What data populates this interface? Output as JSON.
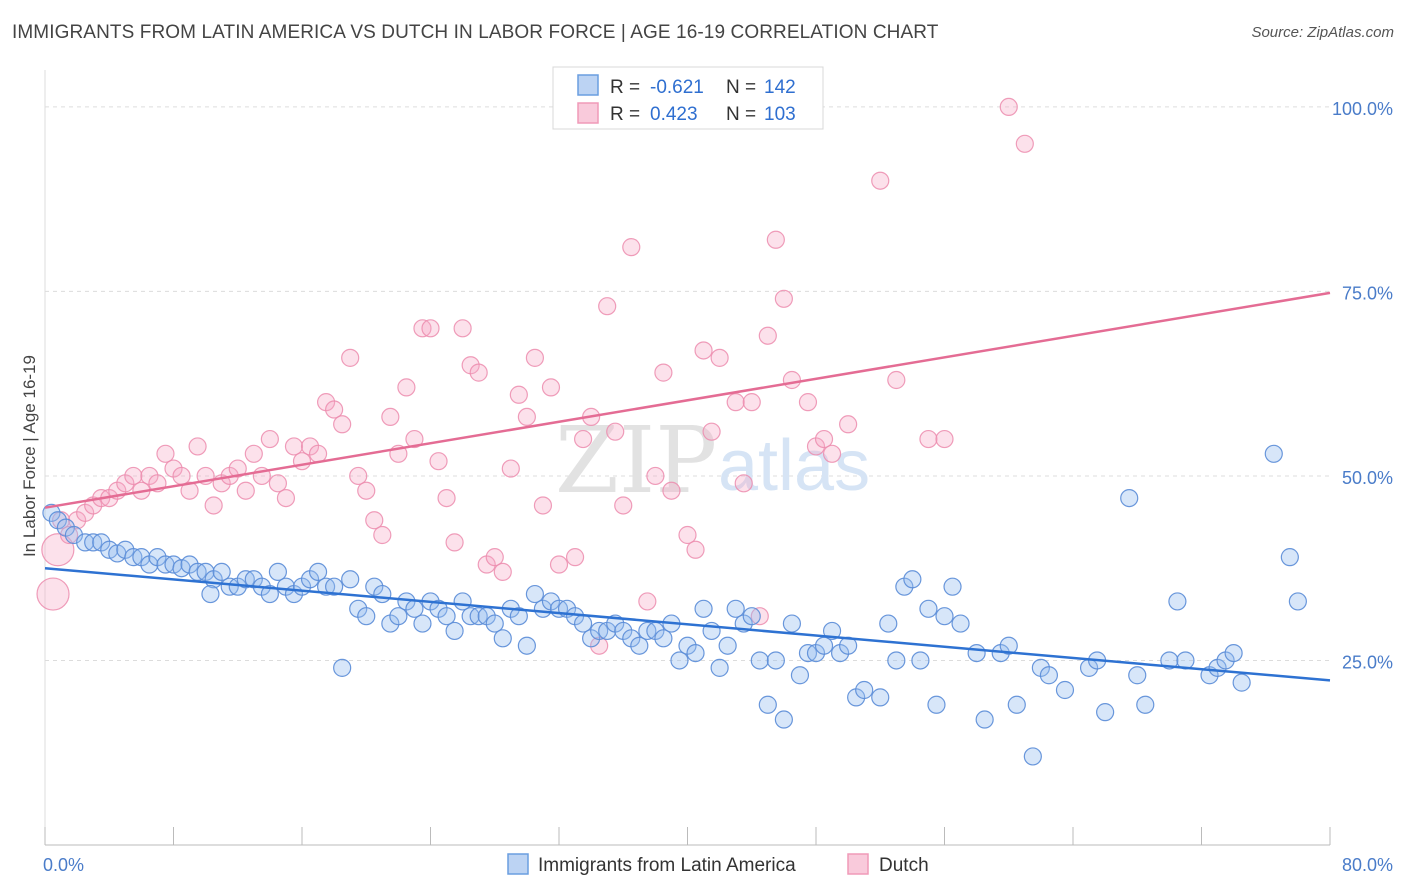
{
  "title": "IMMIGRANTS FROM LATIN AMERICA VS DUTCH IN LABOR FORCE | AGE 16-19 CORRELATION CHART",
  "source": "Source: ZipAtlas.com",
  "watermark": {
    "zip": "ZIP",
    "atlas": "atlas"
  },
  "legend": {
    "blue": {
      "r_label": "R =",
      "r_value": "-0.621",
      "n_label": "N =",
      "n_value": "142"
    },
    "pink": {
      "r_label": "R =",
      "r_value": "0.423",
      "n_label": "N =",
      "n_value": "103"
    }
  },
  "colors": {
    "blue": "#6a9ee0",
    "blue_line": "#2e72d2",
    "pink": "#f09ab8",
    "pink_line": "#e46c94"
  },
  "chart_data": {
    "type": "scatter",
    "title": "IMMIGRANTS FROM LATIN AMERICA VS DUTCH IN LABOR FORCE | AGE 16-19 CORRELATION CHART",
    "xlabel": "",
    "ylabel": "In Labor Force | Age 16-19",
    "xlim": [
      0,
      80
    ],
    "ylim": [
      0,
      105
    ],
    "x_tick_labels": [
      "0.0%",
      "80.0%"
    ],
    "y_ticks": [
      25,
      50,
      75,
      100
    ],
    "y_tick_labels": [
      "25.0%",
      "50.0%",
      "75.0%",
      "100.0%"
    ],
    "grid": "horizontal dashed",
    "legend_position": "top-center",
    "series": [
      {
        "name": "Immigrants from Latin America",
        "color": "#6a9ee0",
        "trend": {
          "x": [
            0,
            80
          ],
          "y": [
            37.5,
            22.3
          ]
        },
        "points": [
          [
            0.4,
            45
          ],
          [
            0.8,
            44
          ],
          [
            1.3,
            43
          ],
          [
            1.8,
            42
          ],
          [
            2.5,
            41
          ],
          [
            3,
            41
          ],
          [
            3.5,
            41
          ],
          [
            4,
            40
          ],
          [
            4.5,
            39.5
          ],
          [
            5,
            40
          ],
          [
            5.5,
            39
          ],
          [
            6,
            39
          ],
          [
            6.5,
            38
          ],
          [
            7,
            39
          ],
          [
            7.5,
            38
          ],
          [
            8,
            38
          ],
          [
            8.5,
            37.5
          ],
          [
            9,
            38
          ],
          [
            9.5,
            37
          ],
          [
            10,
            37
          ],
          [
            10.5,
            36
          ],
          [
            10.3,
            34
          ],
          [
            11,
            37
          ],
          [
            11.5,
            35
          ],
          [
            12,
            35
          ],
          [
            12.5,
            36
          ],
          [
            13,
            36
          ],
          [
            13.5,
            35
          ],
          [
            14,
            34
          ],
          [
            14.5,
            37
          ],
          [
            15,
            35
          ],
          [
            15.5,
            34
          ],
          [
            16,
            35
          ],
          [
            16.5,
            36
          ],
          [
            17,
            37
          ],
          [
            17.5,
            35
          ],
          [
            18,
            35
          ],
          [
            18.5,
            24
          ],
          [
            19,
            36
          ],
          [
            19.5,
            32
          ],
          [
            20,
            31
          ],
          [
            20.5,
            35
          ],
          [
            21,
            34
          ],
          [
            21.5,
            30
          ],
          [
            22,
            31
          ],
          [
            22.5,
            33
          ],
          [
            23,
            32
          ],
          [
            23.5,
            30
          ],
          [
            24,
            33
          ],
          [
            24.5,
            32
          ],
          [
            25,
            31
          ],
          [
            25.5,
            29
          ],
          [
            26,
            33
          ],
          [
            26.5,
            31
          ],
          [
            27,
            31
          ],
          [
            27.5,
            31
          ],
          [
            28,
            30
          ],
          [
            28.5,
            28
          ],
          [
            29,
            32
          ],
          [
            29.5,
            31
          ],
          [
            30,
            27
          ],
          [
            30.5,
            34
          ],
          [
            31,
            32
          ],
          [
            31.5,
            33
          ],
          [
            32,
            32
          ],
          [
            32.5,
            32
          ],
          [
            33,
            31
          ],
          [
            33.5,
            30
          ],
          [
            34,
            28
          ],
          [
            34.5,
            29
          ],
          [
            35,
            29
          ],
          [
            35.5,
            30
          ],
          [
            36,
            29
          ],
          [
            36.5,
            28
          ],
          [
            37,
            27
          ],
          [
            37.5,
            29
          ],
          [
            38,
            29
          ],
          [
            38.5,
            28
          ],
          [
            39,
            30
          ],
          [
            39.5,
            25
          ],
          [
            40,
            27
          ],
          [
            40.5,
            26
          ],
          [
            41,
            32
          ],
          [
            41.5,
            29
          ],
          [
            42,
            24
          ],
          [
            42.5,
            27
          ],
          [
            43,
            32
          ],
          [
            43.5,
            30
          ],
          [
            44,
            31
          ],
          [
            44.5,
            25
          ],
          [
            45,
            19
          ],
          [
            45.5,
            25
          ],
          [
            46,
            17
          ],
          [
            46.5,
            30
          ],
          [
            47,
            23
          ],
          [
            47.5,
            26
          ],
          [
            48,
            26
          ],
          [
            48.5,
            27
          ],
          [
            49,
            29
          ],
          [
            49.5,
            26
          ],
          [
            50,
            27
          ],
          [
            50.5,
            20
          ],
          [
            51,
            21
          ],
          [
            52,
            20
          ],
          [
            52.5,
            30
          ],
          [
            53,
            25
          ],
          [
            53.5,
            35
          ],
          [
            54,
            36
          ],
          [
            54.5,
            25
          ],
          [
            55,
            32
          ],
          [
            55.5,
            19
          ],
          [
            56,
            31
          ],
          [
            56.5,
            35
          ],
          [
            57,
            30
          ],
          [
            58,
            26
          ],
          [
            58.5,
            17
          ],
          [
            59.5,
            26
          ],
          [
            60,
            27
          ],
          [
            60.5,
            19
          ],
          [
            61.5,
            12
          ],
          [
            62,
            24
          ],
          [
            62.5,
            23
          ],
          [
            63.5,
            21
          ],
          [
            65,
            24
          ],
          [
            65.5,
            25
          ],
          [
            66,
            18
          ],
          [
            67.5,
            47
          ],
          [
            68,
            23
          ],
          [
            68.5,
            19
          ],
          [
            70,
            25
          ],
          [
            70.5,
            33
          ],
          [
            71,
            25
          ],
          [
            72.5,
            23
          ],
          [
            73,
            24
          ],
          [
            73.5,
            25
          ],
          [
            74,
            26
          ],
          [
            74.5,
            22
          ],
          [
            76.5,
            53
          ],
          [
            77.5,
            39
          ],
          [
            78,
            33
          ]
        ]
      },
      {
        "name": "Dutch",
        "color": "#f09ab8",
        "trend": {
          "x": [
            0,
            80
          ],
          "y": [
            45.7,
            74.8
          ]
        },
        "points": [
          [
            0.5,
            34
          ],
          [
            0.8,
            40
          ],
          [
            1,
            44
          ],
          [
            1.5,
            42
          ],
          [
            2,
            44
          ],
          [
            2.5,
            45
          ],
          [
            3,
            46
          ],
          [
            3.5,
            47
          ],
          [
            4,
            47
          ],
          [
            4.5,
            48
          ],
          [
            5,
            49
          ],
          [
            5.5,
            50
          ],
          [
            6,
            48
          ],
          [
            6.5,
            50
          ],
          [
            7,
            49
          ],
          [
            7.5,
            53
          ],
          [
            8,
            51
          ],
          [
            8.5,
            50
          ],
          [
            9,
            48
          ],
          [
            9.5,
            54
          ],
          [
            10,
            50
          ],
          [
            10.5,
            46
          ],
          [
            11,
            49
          ],
          [
            11.5,
            50
          ],
          [
            12,
            51
          ],
          [
            12.5,
            48
          ],
          [
            13,
            53
          ],
          [
            13.5,
            50
          ],
          [
            14,
            55
          ],
          [
            14.5,
            49
          ],
          [
            15,
            47
          ],
          [
            15.5,
            54
          ],
          [
            16,
            52
          ],
          [
            16.5,
            54
          ],
          [
            17,
            53
          ],
          [
            17.5,
            60
          ],
          [
            18,
            59
          ],
          [
            18.5,
            57
          ],
          [
            19,
            66
          ],
          [
            19.5,
            50
          ],
          [
            20,
            48
          ],
          [
            20.5,
            44
          ],
          [
            21,
            42
          ],
          [
            21.5,
            58
          ],
          [
            22,
            53
          ],
          [
            22.5,
            62
          ],
          [
            23,
            55
          ],
          [
            23.5,
            70
          ],
          [
            24,
            70
          ],
          [
            24.5,
            52
          ],
          [
            25,
            47
          ],
          [
            25.5,
            41
          ],
          [
            26,
            70
          ],
          [
            26.5,
            65
          ],
          [
            27,
            64
          ],
          [
            27.5,
            38
          ],
          [
            28,
            39
          ],
          [
            28.5,
            37
          ],
          [
            29,
            51
          ],
          [
            29.5,
            61
          ],
          [
            30,
            58
          ],
          [
            30.5,
            66
          ],
          [
            31,
            46
          ],
          [
            31.5,
            62
          ],
          [
            32,
            38
          ],
          [
            33,
            39
          ],
          [
            33.5,
            55
          ],
          [
            34,
            58
          ],
          [
            34.5,
            27
          ],
          [
            35,
            73
          ],
          [
            35.5,
            56
          ],
          [
            36,
            46
          ],
          [
            36.5,
            81
          ],
          [
            37.5,
            33
          ],
          [
            38,
            50
          ],
          [
            38.5,
            64
          ],
          [
            39,
            48
          ],
          [
            40,
            42
          ],
          [
            40.5,
            40
          ],
          [
            41,
            67
          ],
          [
            41.5,
            56
          ],
          [
            42,
            66
          ],
          [
            43,
            60
          ],
          [
            43.5,
            49
          ],
          [
            44,
            60
          ],
          [
            44.5,
            31
          ],
          [
            45,
            69
          ],
          [
            45.5,
            82
          ],
          [
            46,
            74
          ],
          [
            46.5,
            63
          ],
          [
            47.5,
            60
          ],
          [
            48,
            54
          ],
          [
            48.5,
            55
          ],
          [
            49,
            53
          ],
          [
            50,
            57
          ],
          [
            52,
            90
          ],
          [
            53,
            63
          ],
          [
            55,
            55
          ],
          [
            56,
            55
          ],
          [
            60,
            100
          ],
          [
            61,
            95
          ]
        ]
      }
    ]
  },
  "bottom_legend": [
    {
      "label": "Immigrants from Latin America"
    },
    {
      "label": "Dutch"
    }
  ]
}
